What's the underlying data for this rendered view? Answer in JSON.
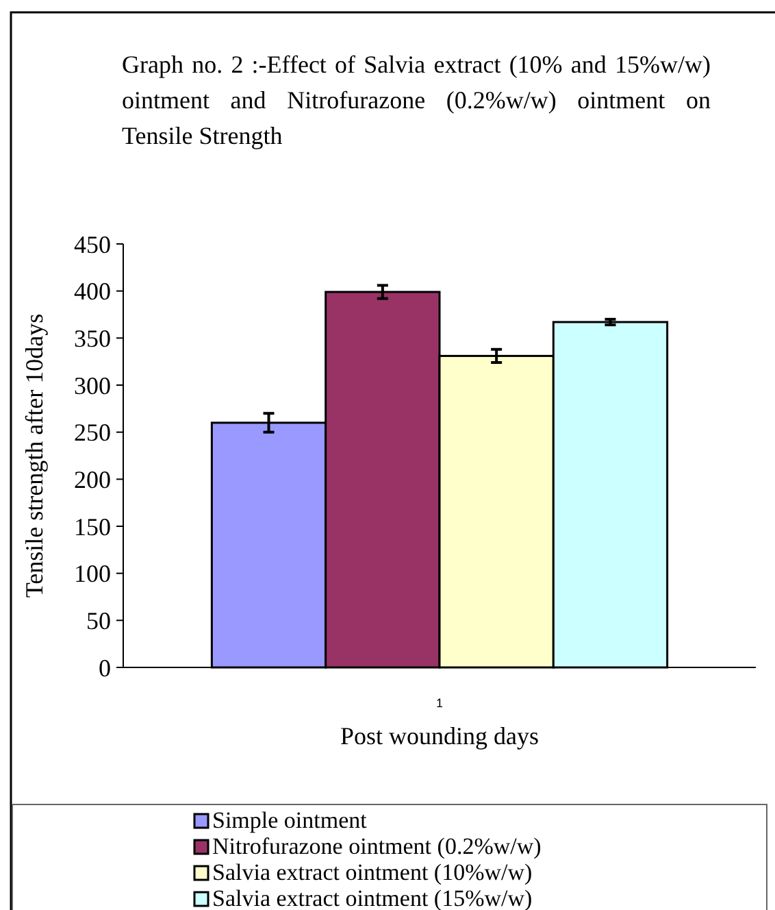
{
  "chart_data": {
    "type": "bar",
    "title": "Graph no. 2 :-Effect of Salvia extract (10% and 15%w/w) ointment and Nitrofurazone (0.2%w/w) ointment on Tensile Strength",
    "xlabel": "Post wounding days",
    "ylabel": "Tensile strength after 10days",
    "categories": [
      "1"
    ],
    "series": [
      {
        "name": "Simple ointment",
        "color": "#9999ff",
        "values": [
          260
        ],
        "errors": [
          10
        ]
      },
      {
        "name": "Nitrofurazone ointment (0.2%w/w)",
        "color": "#993366",
        "values": [
          399
        ],
        "errors": [
          7
        ]
      },
      {
        "name": "Salvia extract ointment (10%w/w)",
        "color": "#ffffcc",
        "values": [
          331
        ],
        "errors": [
          7
        ]
      },
      {
        "name": "Salvia extract ointment (15%w/w)",
        "color": "#ccffff",
        "values": [
          367
        ],
        "errors": [
          3
        ]
      }
    ],
    "ylim": [
      0,
      450
    ],
    "yticks": [
      0,
      50,
      100,
      150,
      200,
      250,
      300,
      350,
      400,
      450
    ],
    "legend": "bottom",
    "grid": false
  }
}
